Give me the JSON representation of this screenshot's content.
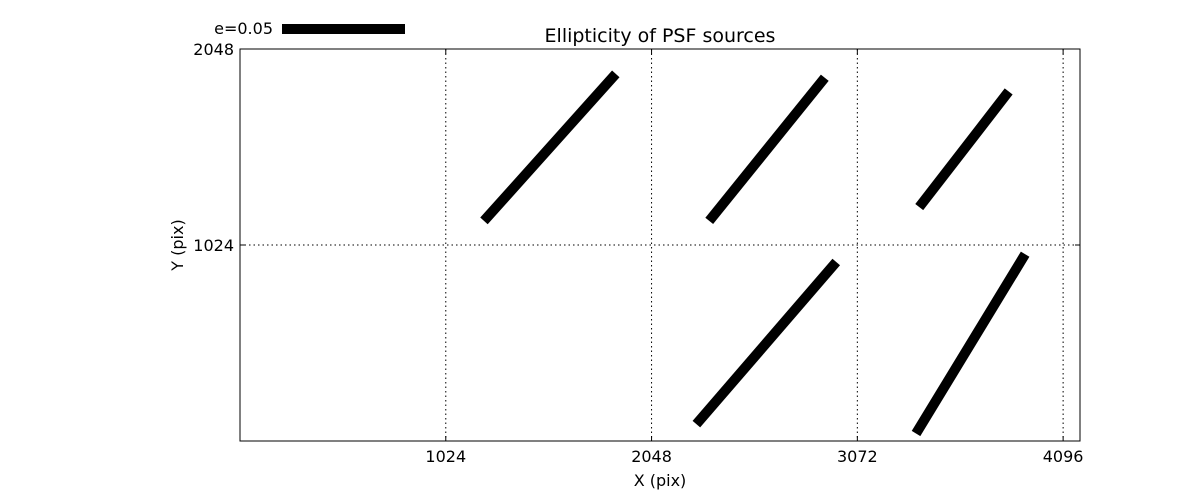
{
  "chart_data": {
    "type": "whisker",
    "title": "Ellipticity of PSF sources",
    "xlabel": "X (pix)",
    "ylabel": "Y (pix)",
    "xlim": [
      0,
      4180
    ],
    "ylim": [
      0,
      2048
    ],
    "xticks": [
      1024,
      2048,
      3072,
      4096
    ],
    "yticks": [
      1024,
      2048
    ],
    "xtick_labels": [
      "1024",
      "2048",
      "3072",
      "4096"
    ],
    "ytick_labels": [
      "1024",
      "2048"
    ],
    "grid": true,
    "grid_style": "dotted",
    "line_color": "#000000",
    "scale_bar": {
      "label": "e=0.05",
      "ellipticity": 0.05
    },
    "whiskers": [
      {
        "x0": 1214,
        "y0": 1150,
        "x1": 1870,
        "y1": 1918
      },
      {
        "x0": 2335,
        "y0": 1150,
        "x1": 2910,
        "y1": 1898
      },
      {
        "x0": 3380,
        "y0": 1222,
        "x1": 3825,
        "y1": 1826
      },
      {
        "x0": 2271,
        "y0": 88,
        "x1": 2967,
        "y1": 935
      },
      {
        "x0": 3364,
        "y0": 39,
        "x1": 3907,
        "y1": 976
      }
    ]
  }
}
